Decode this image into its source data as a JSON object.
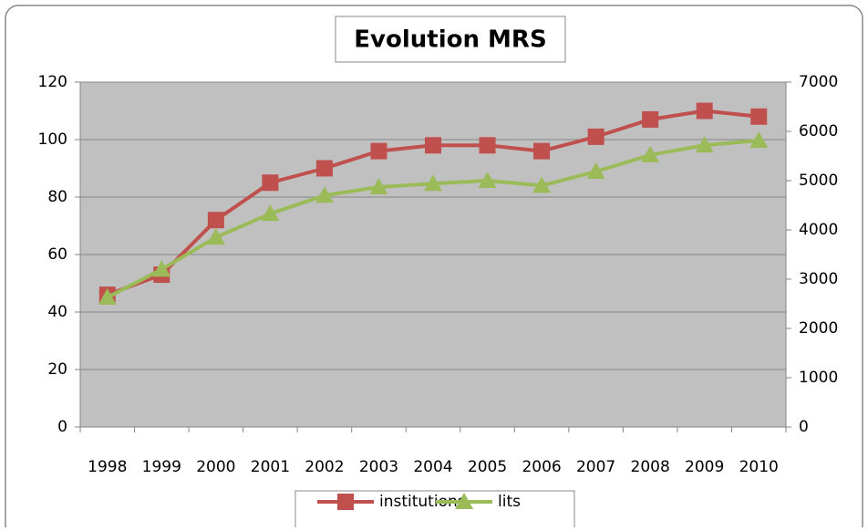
{
  "chart_data": {
    "type": "line",
    "title": "Evolution MRS",
    "categories": [
      "1998",
      "1999",
      "2000",
      "2001",
      "2002",
      "2003",
      "2004",
      "2005",
      "2006",
      "2007",
      "2008",
      "2009",
      "2010"
    ],
    "series": [
      {
        "name": "institutions",
        "color": "#c0504d",
        "marker": "square",
        "values": [
          46,
          53,
          72,
          85,
          90,
          96,
          98,
          98,
          96,
          101,
          107,
          110,
          108
        ]
      },
      {
        "name": "lits",
        "color": "#9bbb59",
        "marker": "triangle",
        "axis": "y2",
        "values": [
          2630,
          3200,
          3850,
          4330,
          4700,
          4870,
          4940,
          5000,
          4900,
          5185,
          5520,
          5720,
          5815
        ]
      }
    ],
    "ylim": [
      0,
      120
    ],
    "yticks": [
      0,
      20,
      40,
      60,
      80,
      100,
      120
    ],
    "y2lim": [
      0,
      7000
    ],
    "y2ticks": [
      0,
      1000,
      2000,
      3000,
      4000,
      5000,
      6000,
      7000
    ],
    "grid": true,
    "legend": "bottom"
  }
}
